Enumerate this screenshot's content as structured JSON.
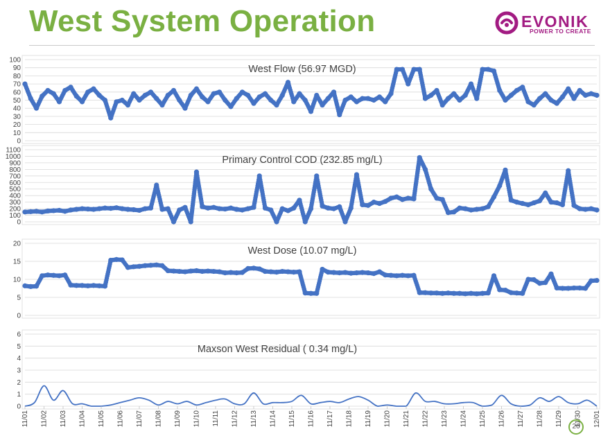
{
  "slide": {
    "title": "West System Operation",
    "page_number": "26"
  },
  "logo": {
    "wordmark": "EVONIK",
    "tagline": "POWER TO CREATE"
  },
  "colors": {
    "title_green": "#7ab042",
    "brand_purple": "#a21b82",
    "series_blue": "#4472c4",
    "gridline": "#d9d9d9"
  },
  "chart_data": [
    {
      "type": "scatter",
      "title": "West Flow (56.97 MGD)",
      "ylim": [
        0,
        100
      ],
      "yticks": [
        0,
        10,
        20,
        30,
        40,
        50,
        60,
        70,
        80,
        90,
        100
      ],
      "x_range": [
        0,
        30
      ],
      "x": [
        0,
        0.3,
        0.6,
        0.9,
        1.2,
        1.5,
        1.8,
        2.1,
        2.4,
        2.7,
        3.0,
        3.3,
        3.6,
        3.9,
        4.2,
        4.5,
        4.8,
        5.1,
        5.4,
        5.7,
        6.0,
        6.3,
        6.6,
        6.9,
        7.2,
        7.5,
        7.8,
        8.1,
        8.4,
        8.7,
        9.0,
        9.3,
        9.6,
        9.9,
        10.2,
        10.5,
        10.8,
        11.1,
        11.4,
        11.7,
        12.0,
        12.3,
        12.6,
        12.9,
        13.2,
        13.5,
        13.8,
        14.1,
        14.4,
        14.7,
        15.0,
        15.3,
        15.6,
        15.9,
        16.2,
        16.5,
        16.8,
        17.1,
        17.4,
        17.7,
        18.0,
        18.3,
        18.6,
        18.9,
        19.2,
        19.5,
        19.8,
        20.1,
        20.4,
        20.7,
        21.0,
        21.3,
        21.6,
        21.9,
        22.2,
        22.5,
        22.8,
        23.1,
        23.4,
        23.7,
        24.0,
        24.3,
        24.6,
        24.9,
        25.2,
        25.5,
        25.8,
        26.1,
        26.4,
        26.7,
        27.0,
        27.3,
        27.6,
        27.9,
        28.2,
        28.5,
        28.8,
        29.1,
        29.4,
        29.7,
        30.0
      ],
      "y": [
        70,
        52,
        40,
        55,
        62,
        58,
        48,
        62,
        66,
        55,
        48,
        60,
        64,
        56,
        50,
        28,
        48,
        50,
        44,
        58,
        50,
        56,
        60,
        52,
        44,
        56,
        62,
        50,
        40,
        56,
        64,
        54,
        48,
        58,
        60,
        50,
        42,
        52,
        60,
        56,
        46,
        54,
        58,
        50,
        44,
        56,
        72,
        48,
        58,
        50,
        36,
        56,
        44,
        52,
        60,
        32,
        50,
        54,
        48,
        52,
        52,
        50,
        54,
        48,
        58,
        88,
        88,
        70,
        88,
        88,
        52,
        56,
        62,
        44,
        52,
        58,
        50,
        56,
        70,
        52,
        88,
        88,
        86,
        62,
        50,
        56,
        62,
        66,
        48,
        44,
        52,
        58,
        50,
        46,
        54,
        64,
        52,
        62,
        56,
        58,
        56
      ]
    },
    {
      "type": "scatter",
      "title": "Primary Control COD (232.85 mg/L)",
      "ylim": [
        0,
        1100
      ],
      "yticks": [
        0,
        100,
        200,
        300,
        400,
        500,
        600,
        700,
        800,
        900,
        1000,
        1100
      ],
      "x_range": [
        0,
        30
      ],
      "x": [
        0,
        0.3,
        0.6,
        0.9,
        1.2,
        1.5,
        1.8,
        2.1,
        2.4,
        2.7,
        3.0,
        3.3,
        3.6,
        3.9,
        4.2,
        4.5,
        4.8,
        5.1,
        5.4,
        5.7,
        6.0,
        6.3,
        6.6,
        6.9,
        7.2,
        7.5,
        7.8,
        8.1,
        8.4,
        8.7,
        9.0,
        9.3,
        9.6,
        9.9,
        10.2,
        10.5,
        10.8,
        11.1,
        11.4,
        11.7,
        12.0,
        12.3,
        12.6,
        12.9,
        13.2,
        13.5,
        13.8,
        14.1,
        14.4,
        14.7,
        15.0,
        15.3,
        15.6,
        15.9,
        16.2,
        16.5,
        16.8,
        17.1,
        17.4,
        17.7,
        18.0,
        18.3,
        18.6,
        18.9,
        19.2,
        19.5,
        19.8,
        20.1,
        20.4,
        20.7,
        21.0,
        21.3,
        21.6,
        21.9,
        22.2,
        22.5,
        22.8,
        23.1,
        23.4,
        23.7,
        24.0,
        24.3,
        24.6,
        24.9,
        25.2,
        25.5,
        25.8,
        26.1,
        26.4,
        26.7,
        27.0,
        27.3,
        27.6,
        27.9,
        28.2,
        28.5,
        28.8,
        29.1,
        29.4,
        29.7,
        30.0
      ],
      "y": [
        150,
        155,
        160,
        150,
        165,
        170,
        175,
        160,
        180,
        190,
        200,
        195,
        190,
        200,
        210,
        205,
        215,
        200,
        190,
        185,
        175,
        200,
        210,
        560,
        190,
        200,
        0,
        180,
        220,
        0,
        760,
        230,
        210,
        220,
        200,
        195,
        210,
        190,
        180,
        200,
        220,
        700,
        210,
        180,
        0,
        200,
        170,
        210,
        330,
        0,
        200,
        700,
        240,
        210,
        200,
        230,
        0,
        210,
        720,
        260,
        250,
        300,
        280,
        310,
        360,
        380,
        340,
        360,
        350,
        980,
        800,
        500,
        360,
        340,
        140,
        150,
        210,
        200,
        180,
        190,
        200,
        230,
        380,
        550,
        790,
        330,
        300,
        280,
        260,
        290,
        320,
        440,
        300,
        290,
        260,
        780,
        250,
        200,
        190,
        200,
        180
      ]
    },
    {
      "type": "scatter",
      "title": "West Dose (10.07 mg/L)",
      "ylim": [
        0,
        20
      ],
      "yticks": [
        0,
        5,
        10,
        15,
        20
      ],
      "x_range": [
        0,
        30
      ],
      "x": [
        0,
        0.3,
        0.6,
        0.9,
        1.2,
        1.5,
        1.8,
        2.1,
        2.4,
        2.7,
        3.0,
        3.3,
        3.6,
        3.9,
        4.2,
        4.5,
        4.8,
        5.1,
        5.4,
        5.7,
        6.0,
        6.3,
        6.6,
        6.9,
        7.2,
        7.5,
        7.8,
        8.1,
        8.4,
        8.7,
        9.0,
        9.3,
        9.6,
        9.9,
        10.2,
        10.5,
        10.8,
        11.1,
        11.4,
        11.7,
        12.0,
        12.3,
        12.6,
        12.9,
        13.2,
        13.5,
        13.8,
        14.1,
        14.4,
        14.7,
        15.0,
        15.3,
        15.6,
        15.9,
        16.2,
        16.5,
        16.8,
        17.1,
        17.4,
        17.7,
        18.0,
        18.3,
        18.6,
        18.9,
        19.2,
        19.5,
        19.8,
        20.1,
        20.4,
        20.7,
        21.0,
        21.3,
        21.6,
        21.9,
        22.2,
        22.5,
        22.8,
        23.1,
        23.4,
        23.7,
        24.0,
        24.3,
        24.6,
        24.9,
        25.2,
        25.5,
        25.8,
        26.1,
        26.4,
        26.7,
        27.0,
        27.3,
        27.6,
        27.9,
        28.2,
        28.5,
        28.8,
        29.1,
        29.4,
        29.7,
        30.0
      ],
      "y": [
        8.2,
        8.0,
        8.1,
        11.0,
        11.2,
        11.1,
        11.0,
        11.2,
        8.4,
        8.3,
        8.3,
        8.2,
        8.3,
        8.2,
        8.1,
        15.3,
        15.5,
        15.4,
        13.3,
        13.5,
        13.6,
        13.8,
        13.9,
        14.0,
        13.8,
        12.4,
        12.3,
        12.2,
        12.1,
        12.3,
        12.4,
        12.2,
        12.3,
        12.2,
        12.1,
        11.8,
        11.9,
        11.8,
        11.9,
        13.0,
        13.1,
        12.9,
        12.2,
        12.1,
        12.0,
        12.2,
        12.1,
        12.0,
        12.1,
        6.2,
        6.1,
        6.1,
        12.8,
        12.0,
        11.9,
        11.8,
        11.9,
        11.7,
        11.8,
        11.9,
        11.8,
        11.6,
        12.1,
        11.2,
        11.1,
        11.0,
        11.1,
        11.0,
        11.1,
        6.3,
        6.3,
        6.2,
        6.2,
        6.1,
        6.2,
        6.1,
        6.1,
        6.0,
        6.1,
        6.0,
        6.1,
        6.2,
        11.0,
        7.1,
        7.0,
        6.3,
        6.2,
        6.1,
        10.0,
        9.9,
        8.9,
        9.1,
        11.5,
        7.6,
        7.5,
        7.5,
        7.6,
        7.6,
        7.5,
        9.6,
        9.7
      ]
    },
    {
      "type": "line",
      "title": "Maxson West Residual ( 0.34 mg/L)",
      "ylim": [
        0,
        6
      ],
      "yticks": [
        0,
        1,
        2,
        3,
        4,
        5,
        6
      ],
      "x_range": [
        0,
        30
      ],
      "x": [
        0,
        0.5,
        1.0,
        1.5,
        2.0,
        2.5,
        3.0,
        3.5,
        4.0,
        4.5,
        5.0,
        5.5,
        6.0,
        6.5,
        7.0,
        7.5,
        8.0,
        8.5,
        9.0,
        9.5,
        10.0,
        10.5,
        11.0,
        11.5,
        12.0,
        12.5,
        13.0,
        13.5,
        14.0,
        14.5,
        15.0,
        15.5,
        16.0,
        16.5,
        17.0,
        17.5,
        18.0,
        18.5,
        19.0,
        19.5,
        20.0,
        20.5,
        21.0,
        21.5,
        22.0,
        22.5,
        23.0,
        23.5,
        24.0,
        24.5,
        25.0,
        25.5,
        26.0,
        26.5,
        27.0,
        27.5,
        28.0,
        28.5,
        29.0,
        29.5,
        30.0
      ],
      "y": [
        0.0,
        0.3,
        1.7,
        0.5,
        1.3,
        0.2,
        0.2,
        0.0,
        0.0,
        0.1,
        0.3,
        0.5,
        0.7,
        0.5,
        0.1,
        0.4,
        0.2,
        0.4,
        0.1,
        0.3,
        0.5,
        0.6,
        0.2,
        0.2,
        1.1,
        0.2,
        0.3,
        0.3,
        0.4,
        0.9,
        0.2,
        0.3,
        0.4,
        0.3,
        0.6,
        0.8,
        0.5,
        0.0,
        0.1,
        0.0,
        0.0,
        1.1,
        0.4,
        0.4,
        0.2,
        0.2,
        0.3,
        0.3,
        0.0,
        0.1,
        0.9,
        0.2,
        0.0,
        0.1,
        0.7,
        0.4,
        0.8,
        0.3,
        0.2,
        0.5,
        0.0
      ]
    }
  ],
  "x_axis": {
    "labels": [
      "11/01",
      "11/02",
      "11/03",
      "11/04",
      "11/05",
      "11/06",
      "11/07",
      "11/08",
      "11/09",
      "11/10",
      "11/11",
      "11/12",
      "11/13",
      "11/14",
      "11/15",
      "11/16",
      "11/17",
      "11/18",
      "11/19",
      "11/20",
      "11/21",
      "11/22",
      "11/23",
      "11/24",
      "11/25",
      "11/26",
      "11/27",
      "11/28",
      "11/29",
      "11/30",
      "12/01"
    ]
  }
}
